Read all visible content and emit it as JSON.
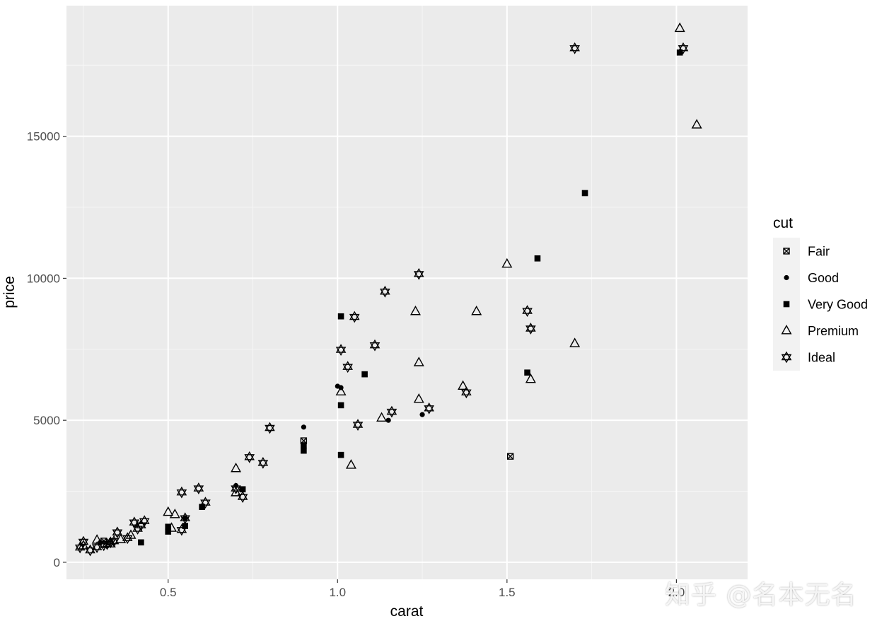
{
  "chart_data": {
    "type": "scatter",
    "title": "",
    "xlabel": "carat",
    "ylabel": "price",
    "xlim": [
      0.2,
      2.21
    ],
    "ylim": [
      -600,
      19600
    ],
    "xticks": [
      0.5,
      1.0,
      1.5,
      2.0
    ],
    "xtick_labels": [
      "0.5",
      "1.0",
      "1.5",
      "2.0"
    ],
    "yticks": [
      0,
      5000,
      10000,
      15000
    ],
    "ytick_labels": [
      "0",
      "5000",
      "10000",
      "15000"
    ],
    "grid": true,
    "legend": {
      "title": "cut",
      "position": "right",
      "entries": [
        "Fair",
        "Good",
        "Very Good",
        "Premium",
        "Ideal"
      ]
    },
    "series": [
      {
        "name": "Fair",
        "shape": "square-cross",
        "points": [
          [
            0.31,
            750
          ],
          [
            0.9,
            4280
          ],
          [
            1.51,
            3730
          ]
        ]
      },
      {
        "name": "Good",
        "shape": "dot",
        "points": [
          [
            0.3,
            700
          ],
          [
            0.55,
            1550
          ],
          [
            0.7,
            2700
          ],
          [
            0.9,
            4760
          ],
          [
            1.0,
            6200
          ],
          [
            1.01,
            6150
          ],
          [
            1.15,
            5000
          ],
          [
            1.25,
            5200
          ]
        ]
      },
      {
        "name": "Very Good",
        "shape": "filled-square",
        "points": [
          [
            0.42,
            700
          ],
          [
            0.5,
            1080
          ],
          [
            0.5,
            1250
          ],
          [
            0.55,
            1280
          ],
          [
            0.6,
            1950
          ],
          [
            0.72,
            2570
          ],
          [
            0.9,
            3930
          ],
          [
            0.9,
            4120
          ],
          [
            1.01,
            8660
          ],
          [
            1.01,
            5530
          ],
          [
            1.01,
            3780
          ],
          [
            1.08,
            6620
          ],
          [
            1.56,
            6680
          ],
          [
            1.59,
            10700
          ],
          [
            1.73,
            13000
          ],
          [
            2.01,
            17950
          ]
        ]
      },
      {
        "name": "Premium",
        "shape": "triangle",
        "points": [
          [
            0.25,
            580
          ],
          [
            0.29,
            780
          ],
          [
            0.33,
            650
          ],
          [
            0.36,
            800
          ],
          [
            0.39,
            950
          ],
          [
            0.5,
            1760
          ],
          [
            0.51,
            1200
          ],
          [
            0.52,
            1680
          ],
          [
            0.7,
            3300
          ],
          [
            0.7,
            2450
          ],
          [
            1.01,
            6000
          ],
          [
            1.04,
            3420
          ],
          [
            1.13,
            5080
          ],
          [
            1.23,
            8830
          ],
          [
            1.24,
            7030
          ],
          [
            1.24,
            5740
          ],
          [
            1.37,
            6200
          ],
          [
            1.41,
            8830
          ],
          [
            1.5,
            10500
          ],
          [
            1.57,
            6440
          ],
          [
            1.7,
            7700
          ],
          [
            2.01,
            18800
          ],
          [
            2.06,
            15400
          ]
        ]
      },
      {
        "name": "Ideal",
        "shape": "hexagram",
        "points": [
          [
            0.24,
            520
          ],
          [
            0.25,
            720
          ],
          [
            0.27,
            420
          ],
          [
            0.29,
            530
          ],
          [
            0.31,
            600
          ],
          [
            0.32,
            640
          ],
          [
            0.33,
            700
          ],
          [
            0.34,
            740
          ],
          [
            0.35,
            1050
          ],
          [
            0.38,
            850
          ],
          [
            0.4,
            1400
          ],
          [
            0.41,
            1180
          ],
          [
            0.42,
            1300
          ],
          [
            0.43,
            1450
          ],
          [
            0.54,
            2460
          ],
          [
            0.54,
            1140
          ],
          [
            0.55,
            1550
          ],
          [
            0.59,
            2600
          ],
          [
            0.61,
            2100
          ],
          [
            0.7,
            2600
          ],
          [
            0.72,
            2300
          ],
          [
            0.74,
            3700
          ],
          [
            0.78,
            3500
          ],
          [
            0.8,
            4730
          ],
          [
            1.01,
            7480
          ],
          [
            1.03,
            6880
          ],
          [
            1.05,
            8640
          ],
          [
            1.06,
            4840
          ],
          [
            1.11,
            7640
          ],
          [
            1.14,
            9530
          ],
          [
            1.16,
            5300
          ],
          [
            1.24,
            10150
          ],
          [
            1.27,
            5420
          ],
          [
            1.38,
            5980
          ],
          [
            1.56,
            8850
          ],
          [
            1.57,
            8230
          ],
          [
            1.7,
            18100
          ],
          [
            2.02,
            18100
          ]
        ]
      }
    ]
  },
  "watermark": "知乎 @名本无名"
}
